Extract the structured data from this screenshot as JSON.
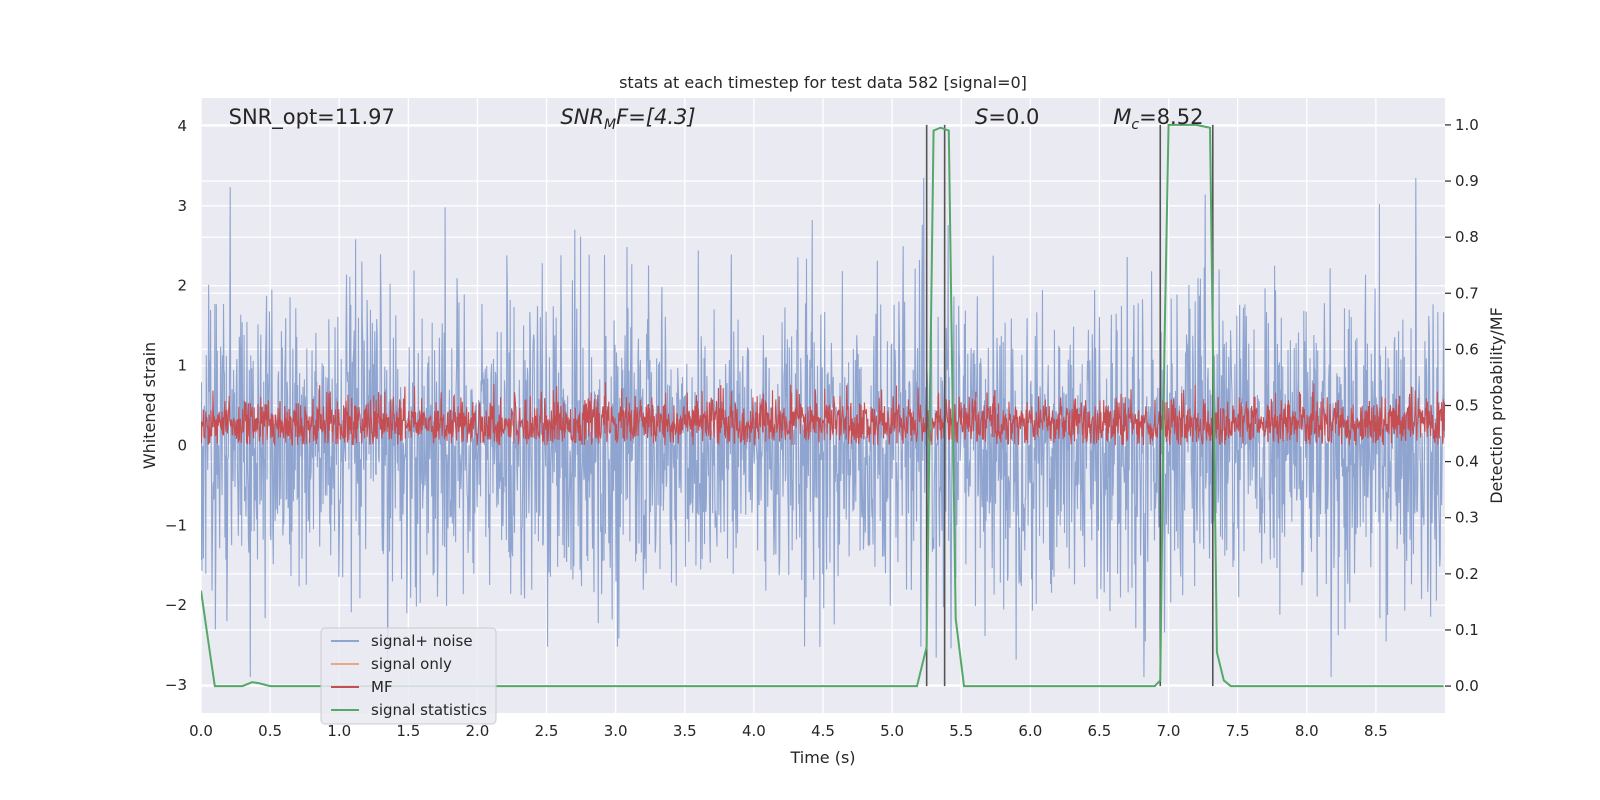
{
  "chart_data": {
    "type": "line",
    "title": "stats at each timestep for test data 582 [signal=0]",
    "xlabel": "Time (s)",
    "ylabel": "Whitened strain",
    "y2label": "Detection probability/MF",
    "xlim": [
      0.0,
      9.0
    ],
    "ylim": [
      -3.35,
      4.35
    ],
    "y2lim": [
      -0.048,
      1.048
    ],
    "x_ticks": [
      0.0,
      0.5,
      1.0,
      1.5,
      2.0,
      2.5,
      3.0,
      3.5,
      4.0,
      4.5,
      5.0,
      5.5,
      6.0,
      6.5,
      7.0,
      7.5,
      8.0,
      8.5
    ],
    "x_tick_labels": [
      "0.0",
      "0.5",
      "1.0",
      "1.5",
      "2.0",
      "2.5",
      "3.0",
      "3.5",
      "4.0",
      "4.5",
      "5.0",
      "5.5",
      "6.0",
      "6.5",
      "7.0",
      "7.5",
      "8.0",
      "8.5"
    ],
    "y_ticks": [
      -3,
      -2,
      -1,
      0,
      1,
      2,
      3,
      4
    ],
    "y_tick_labels": [
      "−3",
      "−2",
      "−1",
      "0",
      "1",
      "2",
      "3",
      "4"
    ],
    "y2_ticks": [
      0.0,
      0.1,
      0.2,
      0.3,
      0.4,
      0.5,
      0.6,
      0.7,
      0.8,
      0.9,
      1.0
    ],
    "y2_tick_labels": [
      "0.0",
      "0.1",
      "0.2",
      "0.3",
      "0.4",
      "0.5",
      "0.6",
      "0.7",
      "0.8",
      "0.9",
      "1.0"
    ],
    "grid": true,
    "legend_position": "lower-left",
    "annotations": {
      "snr_opt": "SNR_opt=11.97",
      "snr_mf_sym": "SNR",
      "snr_mf_sub": "M",
      "snr_mf_rest": "F=[4.3]",
      "s_sym": "S",
      "s_rest": "=0.0",
      "mc_sym": "M",
      "mc_sub": "c",
      "mc_rest": "=8.52"
    },
    "series": [
      {
        "name": "signal+ noise",
        "color": "#8fa5d0",
        "axis": "left",
        "kind": "noise",
        "range": [
          -2.9,
          3.35
        ]
      },
      {
        "name": "signal only",
        "color": "#e8a888",
        "axis": "left",
        "kind": "line",
        "x": [],
        "y": []
      },
      {
        "name": "MF",
        "color": "#c44e52",
        "axis": "left",
        "kind": "noise",
        "range": [
          0.0,
          1.0
        ]
      },
      {
        "name": "signal statistics",
        "color": "#55a868",
        "axis": "right",
        "kind": "line",
        "x": [
          0.0,
          0.07,
          0.1,
          0.2,
          0.3,
          0.37,
          0.42,
          0.5,
          1.0,
          2.0,
          3.0,
          4.0,
          5.0,
          5.18,
          5.25,
          5.3,
          5.35,
          5.41,
          5.46,
          5.52,
          5.6,
          6.0,
          6.5,
          6.9,
          6.94,
          6.97,
          7.0,
          7.1,
          7.2,
          7.3,
          7.35,
          7.4,
          7.45,
          8.0,
          8.99
        ],
        "y": [
          0.17,
          0.05,
          0.0,
          0.0,
          0.0,
          0.007,
          0.005,
          0.0,
          0.0,
          0.0,
          0.0,
          0.0,
          0.0,
          0.0,
          0.07,
          0.99,
          0.995,
          0.99,
          0.12,
          0.0,
          0.0,
          0.0,
          0.0,
          0.0,
          0.01,
          0.6,
          1.0,
          1.0,
          1.0,
          0.995,
          0.06,
          0.01,
          0.0,
          0.0,
          0.0
        ]
      }
    ],
    "vertical_lines_x": [
      5.25,
      5.38,
      6.94,
      7.32
    ],
    "vertical_line_color": "#555555"
  }
}
